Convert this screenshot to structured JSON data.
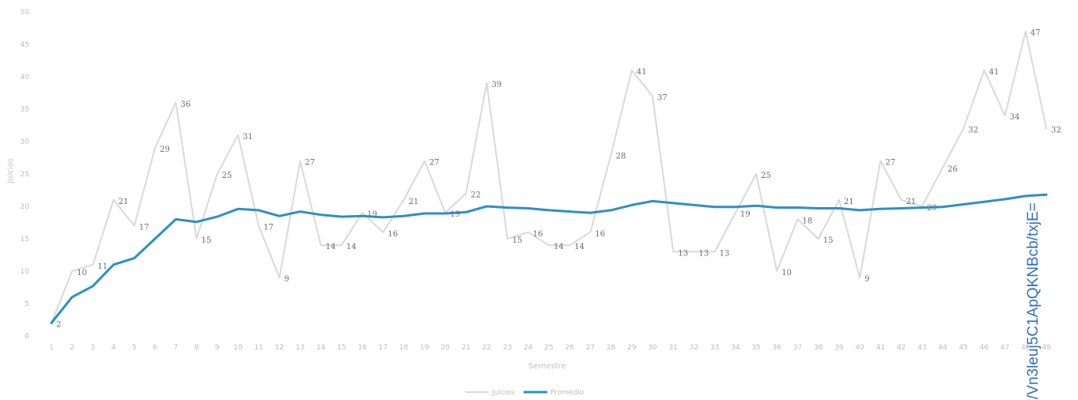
{
  "chart_data": {
    "type": "line",
    "xlabel": "Semestre",
    "ylabel": "Juicios",
    "x": [
      1,
      2,
      3,
      4,
      5,
      6,
      7,
      8,
      9,
      10,
      11,
      12,
      13,
      14,
      15,
      16,
      17,
      18,
      19,
      20,
      21,
      22,
      23,
      24,
      25,
      26,
      27,
      28,
      29,
      30,
      31,
      32,
      33,
      34,
      35,
      36,
      37,
      38,
      39,
      40,
      41,
      42,
      43,
      44,
      45,
      46,
      47,
      48,
      49
    ],
    "ylim": [
      0,
      50
    ],
    "yticks": [
      0,
      5,
      10,
      15,
      20,
      25,
      30,
      35,
      40,
      45,
      50
    ],
    "grid": false,
    "legend_position": "bottom",
    "series": [
      {
        "name": "Juicios",
        "color": "#d9d9d9",
        "labels_shown": true,
        "values": [
          2,
          10,
          11,
          21,
          17,
          29,
          36,
          15,
          25,
          31,
          17,
          9,
          27,
          14,
          14,
          19,
          16,
          21,
          27,
          19,
          22,
          39,
          15,
          16,
          14,
          14,
          16,
          28,
          41,
          37,
          13,
          13,
          13,
          19,
          25,
          10,
          18,
          15,
          21,
          9,
          27,
          21,
          20,
          26,
          32,
          41,
          34,
          47,
          32
        ]
      },
      {
        "name": "Promedio",
        "color": "#2e8fc8",
        "labels_shown": false,
        "values": [
          2,
          6,
          7.7,
          11,
          12,
          15,
          18,
          17.6,
          18.4,
          19.6,
          19.4,
          18.5,
          19.2,
          18.7,
          18.4,
          18.5,
          18.3,
          18.5,
          18.9,
          18.9,
          19.1,
          20,
          19.8,
          19.7,
          19.4,
          19.2,
          19,
          19.4,
          20.2,
          20.8,
          20.5,
          20.2,
          19.9,
          19.9,
          20.1,
          19.8,
          19.8,
          19.7,
          19.7,
          19.4,
          19.6,
          19.7,
          19.8,
          19.9,
          20.3,
          20.7,
          21.1,
          21.6,
          21.8
        ]
      }
    ]
  },
  "watermark": "/Vn3leuj5C1ApQKNBcb/txjE="
}
